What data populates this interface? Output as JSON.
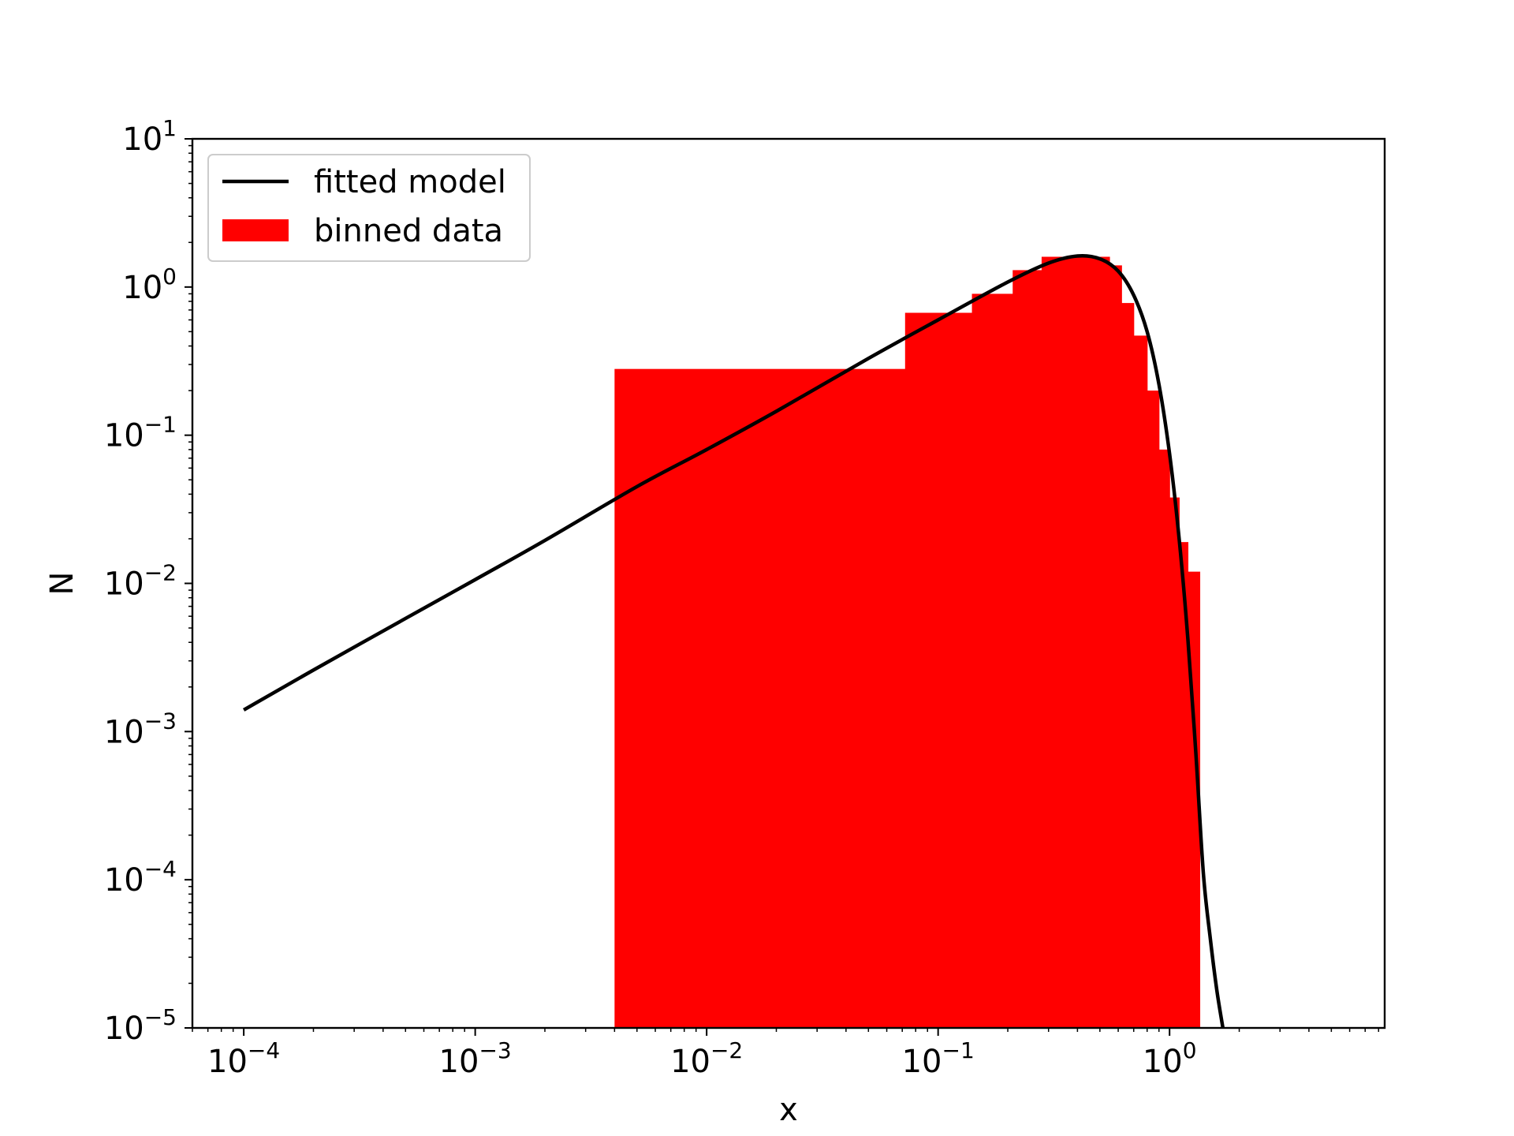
{
  "chart_data": {
    "type": "bar",
    "title": "",
    "xlabel": "x",
    "ylabel": "N",
    "xscale": "log",
    "yscale": "log",
    "xlim": [
      6e-05,
      8.5
    ],
    "ylim": [
      1e-05,
      10
    ],
    "grid": false,
    "legend_position": "top-left",
    "x_tick_labels": [
      {
        "value": 0.0001,
        "base": "10",
        "exp": "−4"
      },
      {
        "value": 0.001,
        "base": "10",
        "exp": "−3"
      },
      {
        "value": 0.01,
        "base": "10",
        "exp": "−2"
      },
      {
        "value": 0.1,
        "base": "10",
        "exp": "−1"
      },
      {
        "value": 1,
        "base": "10",
        "exp": "0"
      }
    ],
    "y_tick_labels": [
      {
        "value": 1e-05,
        "base": "10",
        "exp": "−5"
      },
      {
        "value": 0.0001,
        "base": "10",
        "exp": "−4"
      },
      {
        "value": 0.001,
        "base": "10",
        "exp": "−3"
      },
      {
        "value": 0.01,
        "base": "10",
        "exp": "−2"
      },
      {
        "value": 0.1,
        "base": "10",
        "exp": "−1"
      },
      {
        "value": 1,
        "base": "10",
        "exp": "0"
      },
      {
        "value": 10,
        "base": "10",
        "exp": "1"
      }
    ],
    "series": [
      {
        "name": "fitted model",
        "kind": "line",
        "color": "#000000",
        "x": [
          0.0001,
          0.0002,
          0.0005,
          0.001,
          0.002,
          0.005,
          0.01,
          0.02,
          0.05,
          0.1,
          0.2,
          0.3,
          0.4,
          0.5,
          0.6,
          0.7,
          0.8,
          0.9,
          1.0,
          1.1,
          1.2,
          1.3,
          1.4,
          1.5,
          1.6,
          1.7
        ],
        "y": [
          0.0014,
          0.0026,
          0.0058,
          0.0106,
          0.0195,
          0.045,
          0.08,
          0.145,
          0.33,
          0.6,
          1.08,
          1.45,
          1.62,
          1.55,
          1.28,
          0.88,
          0.5,
          0.22,
          0.075,
          0.02,
          0.0042,
          0.0007,
          0.00011,
          4e-05,
          1.8e-05,
          1e-05
        ]
      },
      {
        "name": "binned data",
        "kind": "bar",
        "color": "#ff0000",
        "bins": [
          {
            "x0": 0.004,
            "x1": 0.072,
            "y": 0.28
          },
          {
            "x0": 0.072,
            "x1": 0.14,
            "y": 0.67
          },
          {
            "x0": 0.14,
            "x1": 0.21,
            "y": 0.9
          },
          {
            "x0": 0.21,
            "x1": 0.28,
            "y": 1.3
          },
          {
            "x0": 0.28,
            "x1": 0.55,
            "y": 1.6
          },
          {
            "x0": 0.55,
            "x1": 0.62,
            "y": 1.4
          },
          {
            "x0": 0.62,
            "x1": 0.7,
            "y": 0.78
          },
          {
            "x0": 0.7,
            "x1": 0.8,
            "y": 0.47
          },
          {
            "x0": 0.8,
            "x1": 0.9,
            "y": 0.2
          },
          {
            "x0": 0.9,
            "x1": 1.0,
            "y": 0.08
          },
          {
            "x0": 1.0,
            "x1": 1.1,
            "y": 0.038
          },
          {
            "x0": 1.1,
            "x1": 1.2,
            "y": 0.019
          },
          {
            "x0": 1.2,
            "x1": 1.35,
            "y": 0.012
          }
        ]
      }
    ]
  }
}
